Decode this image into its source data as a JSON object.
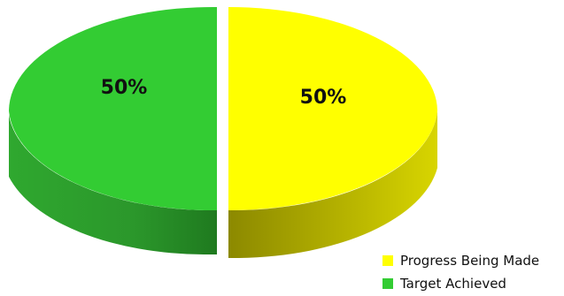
{
  "chart_data": {
    "type": "pie",
    "title": "",
    "slices": [
      {
        "label": "Progress Being Made",
        "value": 50,
        "display": "50%",
        "color": "#ffff00",
        "side_color": "#a9a600"
      },
      {
        "label": "Target Achieved",
        "value": 50,
        "display": "50%",
        "color": "#33cc33",
        "side_color": "#2b9b2b"
      }
    ],
    "style": "3d-exploded",
    "legend_position": "bottom-right"
  }
}
